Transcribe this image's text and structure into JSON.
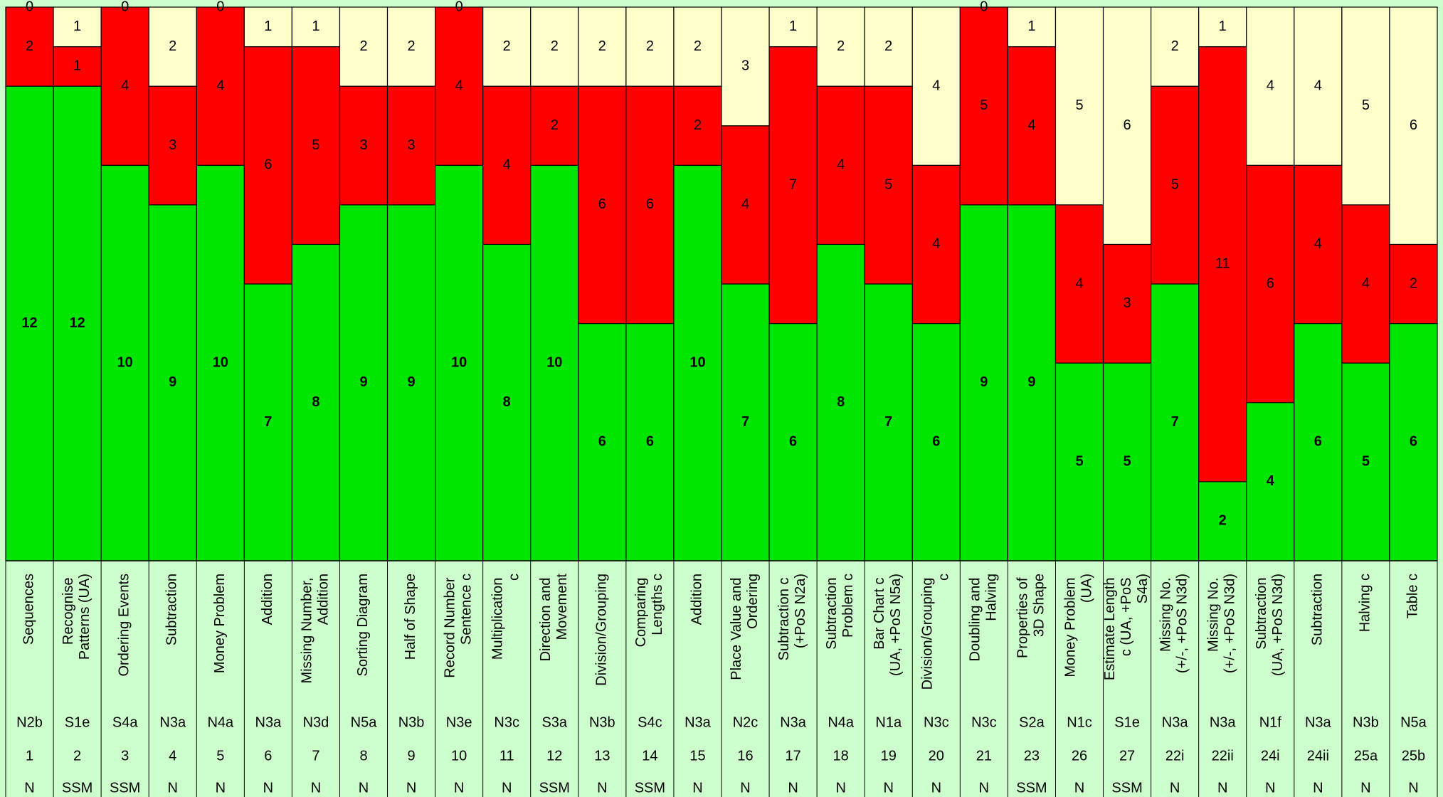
{
  "chart_data": {
    "type": "bar",
    "stacked": true,
    "categories": [
      "Sequences",
      "Recognise Patterns (UA)",
      "Ordering Events",
      "Subtraction",
      "Money Problem",
      "Addition",
      "Missing Number, Addition",
      "Sorting Diagram",
      "Half of Shape",
      "Record Number Sentence c",
      "Multiplication c",
      "Direction and Movement",
      "Division/Grouping",
      "Comparing Lengths c",
      "Addition",
      "Place Value and Ordering",
      "Subtraction c (+PoS N2a)",
      "Subtraction Problem c",
      "Bar Chart c (UA, +PoS N5a)",
      "Division/Grouping c",
      "Doubling and Halving",
      "Properties of 3D Shape",
      "Money Problem (UA)",
      "Estimate Length c (UA, +PoS S4a)",
      "Missing No. (+/-, +PoS N3d)",
      "Missing No. (+/-, +PoS N3d)",
      "Subtraction (UA, +PoS N3d)",
      "Subtraction",
      "Halving c",
      "Table c"
    ],
    "codes": [
      "N2b",
      "S1e",
      "S4a",
      "N3a",
      "N4a",
      "N3a",
      "N3d",
      "N5a",
      "N3b",
      "N3e",
      "N3c",
      "S3a",
      "N3b",
      "S4c",
      "N3a",
      "N2c",
      "N3a",
      "N4a",
      "N1a",
      "N3c",
      "N3c",
      "S2a",
      "N1c",
      "S1e",
      "N3a",
      "N3a",
      "N1f",
      "N3a",
      "N3b",
      "N5a"
    ],
    "numbers": [
      "1",
      "2",
      "3",
      "4",
      "5",
      "6",
      "7",
      "8",
      "9",
      "10",
      "11",
      "12",
      "13",
      "14",
      "15",
      "16",
      "17",
      "18",
      "19",
      "20",
      "21",
      "23",
      "26",
      "27",
      "22i",
      "22ii",
      "24i",
      "24ii",
      "25a",
      "25b"
    ],
    "strands": [
      "N",
      "SSM",
      "SSM",
      "N",
      "N",
      "N",
      "N",
      "N",
      "N",
      "N",
      "N",
      "SSM",
      "N",
      "SSM",
      "N",
      "N",
      "N",
      "N",
      "N",
      "N",
      "N",
      "SSM",
      "N",
      "SSM",
      "N",
      "N",
      "N",
      "N",
      "N",
      "N"
    ],
    "series": [
      {
        "color": "#00e600",
        "values": [
          12,
          12,
          10,
          9,
          10,
          7,
          8,
          9,
          9,
          10,
          8,
          10,
          6,
          6,
          10,
          7,
          6,
          8,
          7,
          6,
          9,
          9,
          5,
          5,
          7,
          2,
          4,
          6,
          5,
          6
        ]
      },
      {
        "color": "#ff0000",
        "values": [
          2,
          1,
          4,
          3,
          4,
          6,
          5,
          3,
          3,
          4,
          4,
          2,
          6,
          6,
          2,
          4,
          7,
          4,
          5,
          4,
          5,
          4,
          4,
          3,
          5,
          11,
          6,
          4,
          4,
          2
        ]
      },
      {
        "color": "#ffffcc",
        "values": [
          0,
          1,
          0,
          2,
          0,
          1,
          1,
          2,
          2,
          0,
          2,
          2,
          2,
          2,
          2,
          3,
          1,
          2,
          2,
          4,
          0,
          1,
          5,
          6,
          2,
          1,
          4,
          4,
          5,
          6
        ]
      }
    ],
    "ylim": [
      0,
      14
    ]
  }
}
